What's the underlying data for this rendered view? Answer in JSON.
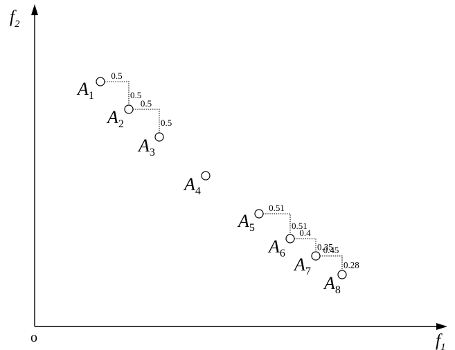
{
  "axes": {
    "y_label": "f",
    "y_sub": "2",
    "x_label": "f",
    "x_sub": "1",
    "origin": "o"
  },
  "points": [
    {
      "name": "A",
      "sub": "1",
      "f1": 145,
      "f2": 388
    },
    {
      "name": "A",
      "sub": "2",
      "f1": 186,
      "f2": 348
    },
    {
      "name": "A",
      "sub": "3",
      "f1": 230,
      "f2": 308
    },
    {
      "name": "A",
      "sub": "4",
      "f1": 297,
      "f2": 252
    },
    {
      "name": "A",
      "sub": "5",
      "f1": 374,
      "f2": 197
    },
    {
      "name": "A",
      "sub": "6",
      "f1": 419,
      "f2": 161
    },
    {
      "name": "A",
      "sub": "7",
      "f1": 456,
      "f2": 136
    },
    {
      "name": "A",
      "sub": "8",
      "f1": 494,
      "f2": 109
    }
  ],
  "steps": [
    {
      "from": 0,
      "to": 1,
      "dx_label": "0.5",
      "dy_label": "0.5"
    },
    {
      "from": 1,
      "to": 2,
      "dx_label": "0.5",
      "dy_label": "0.5"
    },
    {
      "from": 4,
      "to": 5,
      "dx_label": "0.51",
      "dy_label": "0.51"
    },
    {
      "from": 5,
      "to": 6,
      "dx_label": "0.4",
      "dy_label": "0.35"
    },
    {
      "from": 6,
      "to": 7,
      "dx_label": "0.45",
      "dy_label": "0.28"
    }
  ]
}
